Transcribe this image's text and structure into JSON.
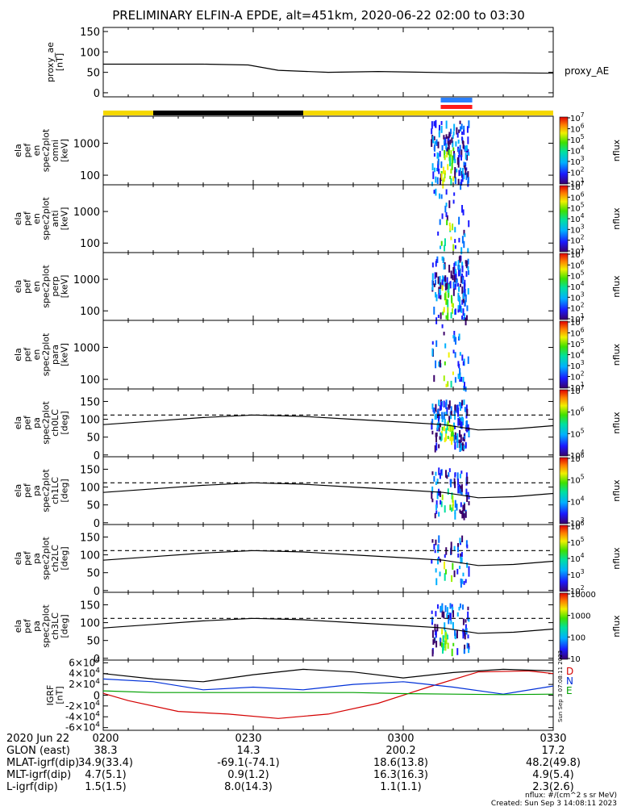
{
  "title": "PRELIMINARY ELFIN-A EPDE, alt=451km, 2020-06-22 02:00 to 03:30",
  "time_axis": {
    "date_label": "2020 Jun 22",
    "tick_labels": [
      "0200",
      "0230",
      "0300",
      "0330"
    ],
    "rows": [
      {
        "label": "GLON (east)",
        "values": [
          "38.3",
          "14.3",
          "200.2",
          "17.2"
        ]
      },
      {
        "label": "MLAT-igrf(dip)",
        "values": [
          "34.9(33.4)",
          "-69.1(-74.1)",
          "18.6(13.8)",
          "48.2(49.8)"
        ]
      },
      {
        "label": "MLT-igrf(dip)",
        "values": [
          "4.7(5.1)",
          "0.9(1.2)",
          "16.3(16.3)",
          "4.9(5.4)"
        ]
      },
      {
        "label": "L-igrf(dip)",
        "values": [
          "1.5(1.5)",
          "8.0(14.3)",
          "1.1(1.1)",
          "2.3(2.6)"
        ]
      }
    ]
  },
  "footer": {
    "nflux_units": "nflux: #/(cm^2 s sr MeV)",
    "created": "Created: Sun Sep  3 14:08:11 2023",
    "side_stamp": "Sun Sep  3 07:08:11 2023"
  },
  "panels": [
    {
      "id": "proxy_ae",
      "ylabel": [
        "proxy_ae",
        "[nT]"
      ],
      "right_label": "proxy_AE",
      "yticks": [
        "0",
        "50",
        "100",
        "150"
      ]
    },
    {
      "id": "spec_omni",
      "ylabel": [
        "ela",
        "pef",
        "en",
        "spec2plot",
        "omni",
        "[keV]"
      ],
      "yticks": [
        "100",
        "1000"
      ],
      "cbar_label": "nflux",
      "cbar_ticks": [
        "10^1",
        "10^2",
        "10^3",
        "10^4",
        "10^5",
        "10^6",
        "10^7"
      ]
    },
    {
      "id": "spec_anti",
      "ylabel": [
        "ela",
        "pef",
        "en",
        "spec2plot",
        "anti",
        "[keV]"
      ],
      "yticks": [
        "100",
        "1000"
      ],
      "cbar_label": "nflux",
      "cbar_ticks": [
        "10^1",
        "10^2",
        "10^3",
        "10^4",
        "10^5",
        "10^6",
        "10^7"
      ]
    },
    {
      "id": "spec_perp",
      "ylabel": [
        "ela",
        "pef",
        "en",
        "spec2plot",
        "perp",
        "[keV]"
      ],
      "yticks": [
        "100",
        "1000"
      ],
      "cbar_label": "nflux",
      "cbar_ticks": [
        "10^1",
        "10^2",
        "10^3",
        "10^4",
        "10^5",
        "10^6",
        "10^7"
      ]
    },
    {
      "id": "spec_para",
      "ylabel": [
        "ela",
        "pef",
        "en",
        "spec2plot",
        "para",
        "[keV]"
      ],
      "yticks": [
        "100",
        "1000"
      ],
      "cbar_label": "nflux",
      "cbar_ticks": [
        "10^1",
        "10^2",
        "10^3",
        "10^4",
        "10^5",
        "10^6",
        "10^7"
      ]
    },
    {
      "id": "pa_ch0",
      "ylabel": [
        "ela",
        "pef",
        "pa",
        "spec2plot",
        "ch0LC",
        "[deg]"
      ],
      "yticks": [
        "0",
        "50",
        "100",
        "150"
      ],
      "cbar_label": "nflux",
      "cbar_ticks": [
        "10^4",
        "10^5",
        "10^6",
        "10^7"
      ]
    },
    {
      "id": "pa_ch1",
      "ylabel": [
        "ela",
        "pef",
        "pa",
        "spec2plot",
        "ch1LC",
        "[deg]"
      ],
      "yticks": [
        "0",
        "50",
        "100",
        "150"
      ],
      "cbar_label": "nflux",
      "cbar_ticks": [
        "10^3",
        "10^4",
        "10^5",
        "10^6"
      ]
    },
    {
      "id": "pa_ch2",
      "ylabel": [
        "ela",
        "pef",
        "pa",
        "spec2plot",
        "ch2LC",
        "[deg]"
      ],
      "yticks": [
        "0",
        "50",
        "100",
        "150"
      ],
      "cbar_label": "nflux",
      "cbar_ticks": [
        "10^2",
        "10^3",
        "10^4",
        "10^5",
        "10^6"
      ]
    },
    {
      "id": "pa_ch3",
      "ylabel": [
        "ela",
        "pef",
        "pa",
        "spec2plot",
        "ch3LC",
        "[deg]"
      ],
      "yticks": [
        "0",
        "50",
        "100",
        "150"
      ],
      "cbar_label": "nflux",
      "cbar_ticks": [
        "10",
        "100",
        "1000",
        "10000"
      ]
    },
    {
      "id": "igrf",
      "ylabel": [
        "IGRF",
        "[nT]"
      ],
      "yticks": [
        "-6×10^4",
        "-4×10^4",
        "-2×10^4",
        "0",
        "2×10^4",
        "4×10^4",
        "6×10^4"
      ],
      "legend": [
        "D",
        "N",
        "E"
      ]
    }
  ],
  "colors": {
    "yellow_bar": "#f5d800",
    "black_bar": "#000000",
    "blue_bar": "#2a7fff",
    "red_bar": "#ff1a1a",
    "D": "#d40000",
    "N": "#0030d8",
    "E": "#00a000",
    "T": "#000000"
  },
  "chart_data": [
    {
      "type": "line",
      "panel": "proxy_ae",
      "x": [
        0,
        10,
        20,
        29,
        35,
        45,
        55,
        60,
        70,
        80,
        90
      ],
      "y": [
        70,
        70,
        70,
        68,
        55,
        50,
        52,
        51,
        49,
        49,
        48
      ],
      "ylim": [
        0,
        160
      ],
      "xlim": [
        0,
        90
      ],
      "xunit": "minutes after 02:00"
    },
    {
      "type": "line",
      "panel": "pa_loss_cone",
      "description_series": [
        {
          "name": "",
          "x": [
            0,
            10,
            20,
            30,
            40,
            50,
            60,
            68,
            75,
            82,
            90
          ],
          "y": [
            85,
            95,
            105,
            112,
            108,
            100,
            92,
            85,
            70,
            73,
            82
          ]
        },
        {
          "name": "",
          "x": [
            0,
            90
          ],
          "y": [
            112,
            112
          ]
        }
      ],
      "ylim": [
        0,
        180
      ],
      "xlim": [
        0,
        90
      ]
    },
    {
      "type": "line",
      "panel": "igrf",
      "series": [
        {
          "name": "D",
          "x": [
            0,
            5,
            15,
            25,
            35,
            45,
            55,
            65,
            75,
            85,
            90
          ],
          "y": [
            3500,
            -10000,
            -30000,
            -35000,
            -43000,
            -35000,
            -15000,
            15000,
            43000,
            45000,
            40000
          ]
        },
        {
          "name": "N",
          "x": [
            0,
            10,
            20,
            30,
            40,
            50,
            60,
            70,
            80,
            90
          ],
          "y": [
            30000,
            25000,
            10000,
            15000,
            10000,
            20000,
            25000,
            15000,
            2000,
            17000
          ]
        },
        {
          "name": "E",
          "x": [
            0,
            10,
            20,
            30,
            40,
            50,
            60,
            70,
            80,
            90
          ],
          "y": [
            8000,
            5000,
            5000,
            5000,
            5000,
            5000,
            3000,
            2000,
            1000,
            2000
          ]
        },
        {
          "name": "",
          "x": [
            0,
            10,
            20,
            30,
            40,
            50,
            60,
            70,
            80,
            90
          ],
          "y": [
            40000,
            30000,
            25000,
            38000,
            48000,
            43000,
            32000,
            42000,
            48000,
            45000
          ]
        }
      ],
      "ylim": [
        -60000,
        60000
      ],
      "xlim": [
        0,
        90
      ]
    }
  ]
}
